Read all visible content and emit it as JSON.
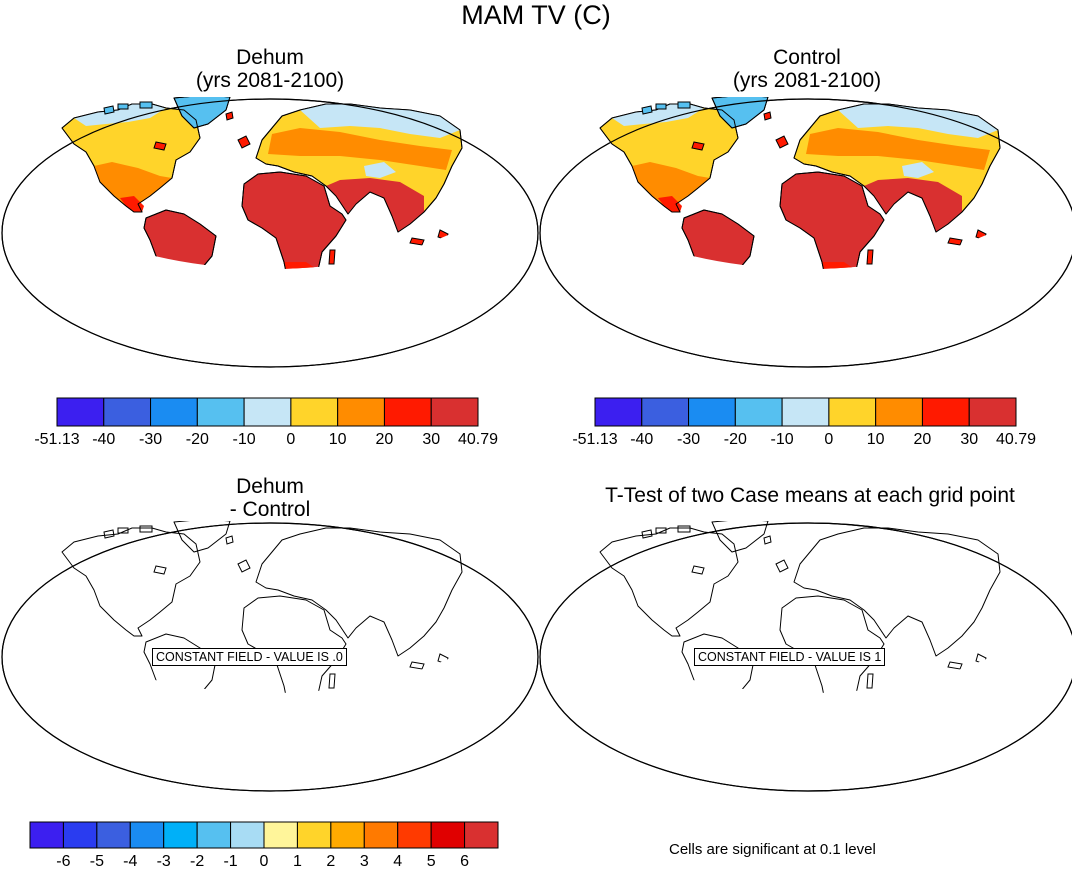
{
  "title": "MAM TV (C)",
  "panels": [
    {
      "title_line1": "Dehum",
      "title_line2": "(yrs 2081-2100)"
    },
    {
      "title_line1": "Control",
      "title_line2": "(yrs 2081-2100)"
    },
    {
      "title_line1": "Dehum",
      "title_line2": "- Control",
      "message": "CONSTANT FIELD - VALUE IS .0"
    },
    {
      "title_line1": "T-Test of two Case means at each grid point",
      "message": "CONSTANT FIELD - VALUE IS 1"
    }
  ],
  "colorbar_top": {
    "labels": [
      "-51.13",
      "-40",
      "-30",
      "-20",
      "-10",
      "0",
      "10",
      "20",
      "30",
      "40.79"
    ],
    "colors": [
      "#3c1ff0",
      "#3b5fe0",
      "#1a8cf2",
      "#56c0f0",
      "#c6e6f6",
      "#ffd42a",
      "#ff8c00",
      "#ff1a00",
      "#d93030"
    ]
  },
  "colorbar_bottom": {
    "labels": [
      "-6",
      "-5",
      "-4",
      "-3",
      "-2",
      "-1",
      "0",
      "1",
      "2",
      "3",
      "4",
      "5",
      "6"
    ],
    "colors": [
      "#3c1ff0",
      "#2a3cf0",
      "#3b5fe0",
      "#1a8cf2",
      "#00b0f8",
      "#56c0f0",
      "#a8dcf4",
      "#fff59a",
      "#ffd42a",
      "#ffaa00",
      "#ff7a00",
      "#ff3a00",
      "#e00000",
      "#d93030"
    ]
  },
  "footnote": "Cells are significant at 0.1 level"
}
